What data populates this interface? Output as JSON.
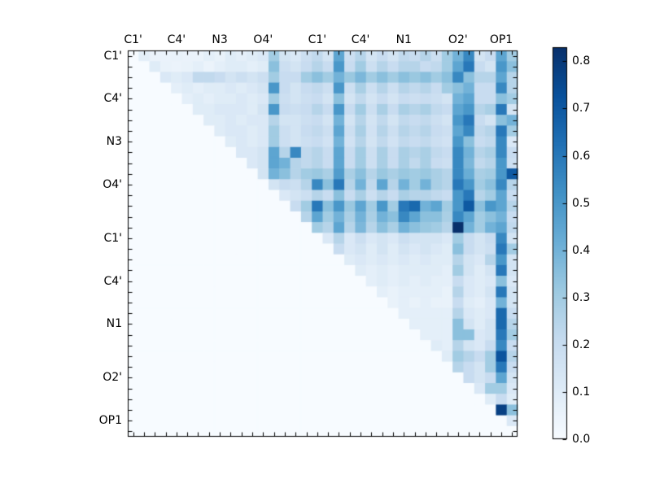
{
  "figure": {
    "background": "#ffffff",
    "title": ""
  },
  "chart_data": {
    "type": "heatmap",
    "title": "",
    "xlabel": "",
    "ylabel": "",
    "matrix_size": 36,
    "triangle": "upper",
    "x_axis_side": "top",
    "grid": false,
    "x_tick_labels": [
      "C1'",
      "C4'",
      "N3",
      "O4'",
      "C1'",
      "C4'",
      "N1",
      "O2'",
      "OP1"
    ],
    "y_tick_labels": [
      "C1'",
      "C4'",
      "N3",
      "O4'",
      "C1'",
      "C4'",
      "N1",
      "O2'",
      "OP1"
    ],
    "label_cell_indices": [
      0,
      4,
      8,
      12,
      17,
      21,
      25,
      30,
      34
    ],
    "colormap": {
      "name": "Blues",
      "stop_positions": [
        0,
        0.125,
        0.25,
        0.375,
        0.5,
        0.625,
        0.75,
        0.875,
        1
      ],
      "stop_colors": [
        "#f7fbff",
        "#deebf7",
        "#c6dbef",
        "#9ecae1",
        "#6baed6",
        "#4292c6",
        "#2171b5",
        "#08519c",
        "#08306b"
      ]
    },
    "vmin": 0,
    "vmax": 0.83,
    "colorbar": {
      "position": "right",
      "tick_values": [
        0,
        0.1,
        0.2,
        0.3,
        0.4,
        0.5,
        0.6,
        0.7,
        0.8
      ],
      "tick_labels": [
        "0.0",
        "0.1",
        "0.2",
        "0.3",
        "0.4",
        "0.5",
        "0.6",
        "0.7",
        "0.8"
      ]
    },
    "values": [
      [
        0,
        0.08,
        0.05,
        0.05,
        0.06,
        0.05,
        0.05,
        0.08,
        0.06,
        0.1,
        0.08,
        0.1,
        0.12,
        0.3,
        0.15,
        0.12,
        0.18,
        0.22,
        0.15,
        0.45,
        0.18,
        0.25,
        0.15,
        0.2,
        0.15,
        0.22,
        0.2,
        0.25,
        0.18,
        0.3,
        0.4,
        0.55,
        0.15,
        0.2,
        0.45,
        0.3
      ],
      [
        0,
        0,
        0.1,
        0.06,
        0.05,
        0.06,
        0.08,
        0.05,
        0.08,
        0.1,
        0.1,
        0.08,
        0.1,
        0.35,
        0.18,
        0.15,
        0.2,
        0.25,
        0.2,
        0.5,
        0.2,
        0.3,
        0.18,
        0.25,
        0.2,
        0.25,
        0.25,
        0.2,
        0.22,
        0.3,
        0.45,
        0.6,
        0.2,
        0.15,
        0.5,
        0.35
      ],
      [
        0,
        0,
        0,
        0.12,
        0.1,
        0.12,
        0.22,
        0.22,
        0.2,
        0.15,
        0.18,
        0.15,
        0.18,
        0.3,
        0.2,
        0.2,
        0.3,
        0.35,
        0.3,
        0.4,
        0.32,
        0.38,
        0.3,
        0.35,
        0.3,
        0.35,
        0.32,
        0.35,
        0.3,
        0.35,
        0.55,
        0.35,
        0.25,
        0.25,
        0.45,
        0.25
      ],
      [
        0,
        0,
        0,
        0,
        0.08,
        0.1,
        0.08,
        0.1,
        0.1,
        0.12,
        0.1,
        0.12,
        0.15,
        0.5,
        0.2,
        0.15,
        0.2,
        0.22,
        0.18,
        0.5,
        0.18,
        0.28,
        0.18,
        0.25,
        0.18,
        0.25,
        0.22,
        0.25,
        0.2,
        0.3,
        0.35,
        0.4,
        0.2,
        0.2,
        0.55,
        0.25
      ],
      [
        0,
        0,
        0,
        0,
        0,
        0.08,
        0.1,
        0.08,
        0.1,
        0.1,
        0.12,
        0.1,
        0.12,
        0.3,
        0.18,
        0.15,
        0.18,
        0.2,
        0.15,
        0.35,
        0.15,
        0.22,
        0.15,
        0.2,
        0.15,
        0.2,
        0.18,
        0.2,
        0.18,
        0.15,
        0.4,
        0.45,
        0.2,
        0.2,
        0.35,
        0.3
      ],
      [
        0,
        0,
        0,
        0,
        0,
        0,
        0.1,
        0.1,
        0.12,
        0.12,
        0.12,
        0.1,
        0.15,
        0.5,
        0.2,
        0.18,
        0.2,
        0.25,
        0.2,
        0.5,
        0.2,
        0.3,
        0.18,
        0.28,
        0.2,
        0.28,
        0.25,
        0.28,
        0.22,
        0.2,
        0.45,
        0.5,
        0.25,
        0.28,
        0.6,
        0.15
      ],
      [
        0,
        0,
        0,
        0,
        0,
        0,
        0,
        0.1,
        0.1,
        0.12,
        0.1,
        0.12,
        0.12,
        0.25,
        0.15,
        0.15,
        0.18,
        0.2,
        0.15,
        0.4,
        0.15,
        0.25,
        0.15,
        0.22,
        0.15,
        0.22,
        0.2,
        0.22,
        0.18,
        0.15,
        0.5,
        0.6,
        0.2,
        0.15,
        0.35,
        0.4
      ],
      [
        0,
        0,
        0,
        0,
        0,
        0,
        0,
        0,
        0.1,
        0.12,
        0.12,
        0.1,
        0.12,
        0.3,
        0.18,
        0.15,
        0.2,
        0.22,
        0.18,
        0.45,
        0.18,
        0.28,
        0.16,
        0.25,
        0.18,
        0.25,
        0.22,
        0.25,
        0.2,
        0.18,
        0.45,
        0.55,
        0.22,
        0.25,
        0.6,
        0.3
      ],
      [
        0,
        0,
        0,
        0,
        0,
        0,
        0,
        0,
        0,
        0.1,
        0.12,
        0.1,
        0.12,
        0.3,
        0.18,
        0.15,
        0.18,
        0.2,
        0.16,
        0.4,
        0.16,
        0.25,
        0.15,
        0.22,
        0.16,
        0.22,
        0.2,
        0.22,
        0.18,
        0.16,
        0.5,
        0.35,
        0.2,
        0.22,
        0.55,
        0.12
      ],
      [
        0,
        0,
        0,
        0,
        0,
        0,
        0,
        0,
        0,
        0,
        0.12,
        0.12,
        0.15,
        0.45,
        0.25,
        0.55,
        0.22,
        0.25,
        0.2,
        0.45,
        0.2,
        0.3,
        0.18,
        0.28,
        0.2,
        0.28,
        0.25,
        0.28,
        0.22,
        0.2,
        0.55,
        0.4,
        0.25,
        0.28,
        0.55,
        0.2
      ],
      [
        0,
        0,
        0,
        0,
        0,
        0,
        0,
        0,
        0,
        0,
        0,
        0.12,
        0.15,
        0.45,
        0.4,
        0.25,
        0.22,
        0.25,
        0.2,
        0.45,
        0.2,
        0.3,
        0.18,
        0.28,
        0.2,
        0.28,
        0.22,
        0.28,
        0.2,
        0.18,
        0.55,
        0.38,
        0.22,
        0.25,
        0.5,
        0.18
      ],
      [
        0,
        0,
        0,
        0,
        0,
        0,
        0,
        0,
        0,
        0,
        0,
        0,
        0.15,
        0.4,
        0.35,
        0.25,
        0.3,
        0.32,
        0.28,
        0.48,
        0.28,
        0.35,
        0.25,
        0.32,
        0.28,
        0.32,
        0.3,
        0.32,
        0.28,
        0.25,
        0.55,
        0.42,
        0.28,
        0.3,
        0.5,
        0.7
      ],
      [
        0,
        0,
        0,
        0,
        0,
        0,
        0,
        0,
        0,
        0,
        0,
        0,
        0,
        0.15,
        0.2,
        0.18,
        0.25,
        0.55,
        0.35,
        0.6,
        0.25,
        0.4,
        0.22,
        0.45,
        0.25,
        0.4,
        0.3,
        0.4,
        0.28,
        0.25,
        0.6,
        0.5,
        0.3,
        0.35,
        0.55,
        0.25
      ],
      [
        0,
        0,
        0,
        0,
        0,
        0,
        0,
        0,
        0,
        0,
        0,
        0,
        0,
        0,
        0.12,
        0.15,
        0.18,
        0.25,
        0.2,
        0.35,
        0.2,
        0.28,
        0.18,
        0.25,
        0.2,
        0.28,
        0.25,
        0.25,
        0.22,
        0.2,
        0.5,
        0.6,
        0.25,
        0.3,
        0.45,
        0.2
      ],
      [
        0,
        0,
        0,
        0,
        0,
        0,
        0,
        0,
        0,
        0,
        0,
        0,
        0,
        0,
        0,
        0.2,
        0.3,
        0.6,
        0.35,
        0.5,
        0.32,
        0.45,
        0.3,
        0.5,
        0.3,
        0.6,
        0.65,
        0.4,
        0.45,
        0.3,
        0.5,
        0.7,
        0.35,
        0.5,
        0.45,
        0.25
      ],
      [
        0,
        0,
        0,
        0,
        0,
        0,
        0,
        0,
        0,
        0,
        0,
        0,
        0,
        0,
        0,
        0,
        0.25,
        0.45,
        0.3,
        0.4,
        0.28,
        0.4,
        0.28,
        0.4,
        0.35,
        0.55,
        0.45,
        0.35,
        0.35,
        0.28,
        0.55,
        0.45,
        0.3,
        0.35,
        0.4,
        0.2
      ],
      [
        0,
        0,
        0,
        0,
        0,
        0,
        0,
        0,
        0,
        0,
        0,
        0,
        0,
        0,
        0,
        0,
        0,
        0.3,
        0.25,
        0.45,
        0.25,
        0.38,
        0.25,
        0.35,
        0.28,
        0.4,
        0.35,
        0.32,
        0.3,
        0.25,
        0.83,
        0.4,
        0.3,
        0.4,
        0.45,
        0.22
      ],
      [
        0,
        0,
        0,
        0,
        0,
        0,
        0,
        0,
        0,
        0,
        0,
        0,
        0,
        0,
        0,
        0,
        0,
        0,
        0.12,
        0.25,
        0.12,
        0.18,
        0.12,
        0.15,
        0.12,
        0.18,
        0.15,
        0.15,
        0.15,
        0.12,
        0.3,
        0.2,
        0.15,
        0.2,
        0.55,
        0.15
      ],
      [
        0,
        0,
        0,
        0,
        0,
        0,
        0,
        0,
        0,
        0,
        0,
        0,
        0,
        0,
        0,
        0,
        0,
        0,
        0,
        0.2,
        0.12,
        0.15,
        0.1,
        0.15,
        0.1,
        0.15,
        0.12,
        0.15,
        0.12,
        0.1,
        0.35,
        0.2,
        0.15,
        0.18,
        0.6,
        0.3
      ],
      [
        0,
        0,
        0,
        0,
        0,
        0,
        0,
        0,
        0,
        0,
        0,
        0,
        0,
        0,
        0,
        0,
        0,
        0,
        0,
        0,
        0.1,
        0.12,
        0.1,
        0.12,
        0.1,
        0.12,
        0.1,
        0.12,
        0.1,
        0.1,
        0.25,
        0.15,
        0.12,
        0.25,
        0.5,
        0.15
      ],
      [
        0,
        0,
        0,
        0,
        0,
        0,
        0,
        0,
        0,
        0,
        0,
        0,
        0,
        0,
        0,
        0,
        0,
        0,
        0,
        0,
        0,
        0.1,
        0.08,
        0.1,
        0.08,
        0.1,
        0.1,
        0.1,
        0.1,
        0.08,
        0.3,
        0.15,
        0.1,
        0.15,
        0.6,
        0.15
      ],
      [
        0,
        0,
        0,
        0,
        0,
        0,
        0,
        0,
        0,
        0,
        0,
        0,
        0,
        0,
        0,
        0,
        0,
        0,
        0,
        0,
        0,
        0,
        0.08,
        0.1,
        0.08,
        0.1,
        0.08,
        0.1,
        0.08,
        0.08,
        0.2,
        0.12,
        0.1,
        0.12,
        0.35,
        0.12
      ],
      [
        0,
        0,
        0,
        0,
        0,
        0,
        0,
        0,
        0,
        0,
        0,
        0,
        0,
        0,
        0,
        0,
        0,
        0,
        0,
        0,
        0,
        0,
        0,
        0.08,
        0.06,
        0.08,
        0.08,
        0.08,
        0.08,
        0.06,
        0.25,
        0.12,
        0.1,
        0.15,
        0.6,
        0.15
      ],
      [
        0,
        0,
        0,
        0,
        0,
        0,
        0,
        0,
        0,
        0,
        0,
        0,
        0,
        0,
        0,
        0,
        0,
        0,
        0,
        0,
        0,
        0,
        0,
        0,
        0.06,
        0.08,
        0.06,
        0.08,
        0.06,
        0.06,
        0.2,
        0.1,
        0.08,
        0.12,
        0.4,
        0.15
      ],
      [
        0,
        0,
        0,
        0,
        0,
        0,
        0,
        0,
        0,
        0,
        0,
        0,
        0,
        0,
        0,
        0,
        0,
        0,
        0,
        0,
        0,
        0,
        0,
        0,
        0,
        0.08,
        0.08,
        0.08,
        0.08,
        0.08,
        0.25,
        0.12,
        0.1,
        0.12,
        0.65,
        0.2
      ],
      [
        0,
        0,
        0,
        0,
        0,
        0,
        0,
        0,
        0,
        0,
        0,
        0,
        0,
        0,
        0,
        0,
        0,
        0,
        0,
        0,
        0,
        0,
        0,
        0,
        0,
        0,
        0.08,
        0.08,
        0.08,
        0.08,
        0.35,
        0.15,
        0.1,
        0.15,
        0.65,
        0.25
      ],
      [
        0,
        0,
        0,
        0,
        0,
        0,
        0,
        0,
        0,
        0,
        0,
        0,
        0,
        0,
        0,
        0,
        0,
        0,
        0,
        0,
        0,
        0,
        0,
        0,
        0,
        0,
        0,
        0.08,
        0.08,
        0.08,
        0.35,
        0.35,
        0.12,
        0.15,
        0.6,
        0.3
      ],
      [
        0,
        0,
        0,
        0,
        0,
        0,
        0,
        0,
        0,
        0,
        0,
        0,
        0,
        0,
        0,
        0,
        0,
        0,
        0,
        0,
        0,
        0,
        0,
        0,
        0,
        0,
        0,
        0,
        0.1,
        0.08,
        0.25,
        0.15,
        0.12,
        0.2,
        0.55,
        0.2
      ],
      [
        0,
        0,
        0,
        0,
        0,
        0,
        0,
        0,
        0,
        0,
        0,
        0,
        0,
        0,
        0,
        0,
        0,
        0,
        0,
        0,
        0,
        0,
        0,
        0,
        0,
        0,
        0,
        0,
        0,
        0.1,
        0.3,
        0.25,
        0.2,
        0.3,
        0.72,
        0.25
      ],
      [
        0,
        0,
        0,
        0,
        0,
        0,
        0,
        0,
        0,
        0,
        0,
        0,
        0,
        0,
        0,
        0,
        0,
        0,
        0,
        0,
        0,
        0,
        0,
        0,
        0,
        0,
        0,
        0,
        0,
        0,
        0.25,
        0.2,
        0.15,
        0.3,
        0.6,
        0.2
      ],
      [
        0,
        0,
        0,
        0,
        0,
        0,
        0,
        0,
        0,
        0,
        0,
        0,
        0,
        0,
        0,
        0,
        0,
        0,
        0,
        0,
        0,
        0,
        0,
        0,
        0,
        0,
        0,
        0,
        0,
        0,
        0,
        0.2,
        0.15,
        0.2,
        0.45,
        0.15
      ],
      [
        0,
        0,
        0,
        0,
        0,
        0,
        0,
        0,
        0,
        0,
        0,
        0,
        0,
        0,
        0,
        0,
        0,
        0,
        0,
        0,
        0,
        0,
        0,
        0,
        0,
        0,
        0,
        0,
        0,
        0,
        0,
        0,
        0.12,
        0.3,
        0.3,
        0.12
      ],
      [
        0,
        0,
        0,
        0,
        0,
        0,
        0,
        0,
        0,
        0,
        0,
        0,
        0,
        0,
        0,
        0,
        0,
        0,
        0,
        0,
        0,
        0,
        0,
        0,
        0,
        0,
        0,
        0,
        0,
        0,
        0,
        0,
        0,
        0.1,
        0.2,
        0.1
      ],
      [
        0,
        0,
        0,
        0,
        0,
        0,
        0,
        0,
        0,
        0,
        0,
        0,
        0,
        0,
        0,
        0,
        0,
        0,
        0,
        0,
        0,
        0,
        0,
        0,
        0,
        0,
        0,
        0,
        0,
        0,
        0,
        0,
        0,
        0,
        0.78,
        0.35
      ],
      [
        0,
        0,
        0,
        0,
        0,
        0,
        0,
        0,
        0,
        0,
        0,
        0,
        0,
        0,
        0,
        0,
        0,
        0,
        0,
        0,
        0,
        0,
        0,
        0,
        0,
        0,
        0,
        0,
        0,
        0,
        0,
        0,
        0,
        0,
        0,
        0.12
      ],
      [
        0,
        0,
        0,
        0,
        0,
        0,
        0,
        0,
        0,
        0,
        0,
        0,
        0,
        0,
        0,
        0,
        0,
        0,
        0,
        0,
        0,
        0,
        0,
        0,
        0,
        0,
        0,
        0,
        0,
        0,
        0,
        0,
        0,
        0,
        0,
        0
      ]
    ]
  }
}
